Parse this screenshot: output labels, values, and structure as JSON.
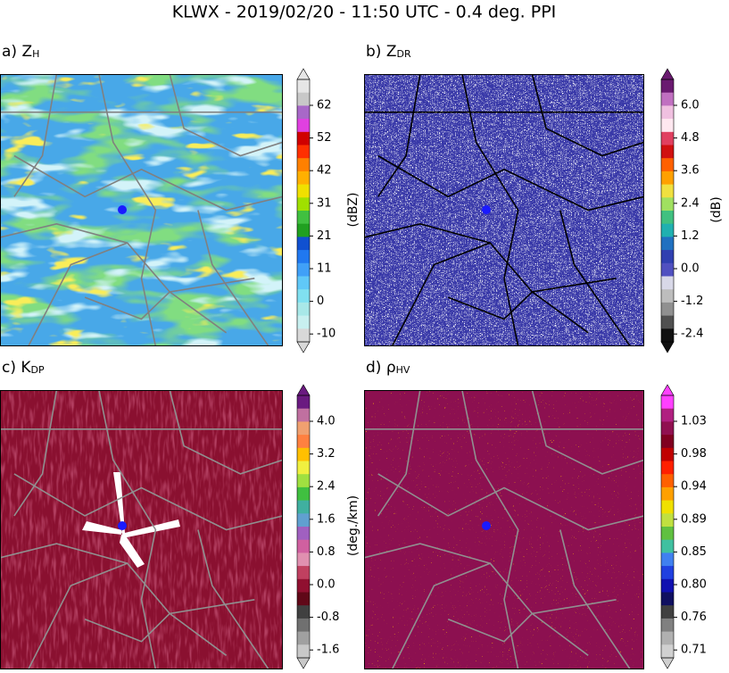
{
  "title": "KLWX - 2019/02/20 - 11:50 UTC - 0.4 deg. PPI",
  "panels": [
    {
      "label": "a) Z",
      "sub": "H",
      "unit": "(dBZ)",
      "ticks": [
        "62",
        "52",
        "42",
        "31",
        "21",
        "11",
        "0",
        "-10"
      ],
      "colors": [
        "#e6e6e6",
        "#c8c8c8",
        "#a868c8",
        "#e040e0",
        "#d00000",
        "#ff3000",
        "#ff8000",
        "#ffb000",
        "#f0e000",
        "#a0e000",
        "#40c040",
        "#20a020",
        "#1050d0",
        "#2078f0",
        "#40a0f8",
        "#60c8f8",
        "#80e0f0",
        "#a8e8e8",
        "#c8f0f0",
        "#d8d8d8"
      ]
    },
    {
      "label": "b) Z",
      "sub": "DR",
      "unit": "(dB)",
      "ticks": [
        "6.0",
        "4.8",
        "3.6",
        "2.4",
        "1.2",
        "0.0",
        "-1.2",
        "-2.4"
      ],
      "colors": [
        "#6a1a70",
        "#c070c0",
        "#f0c0e0",
        "#ffe8f0",
        "#e04060",
        "#d01010",
        "#ff6000",
        "#ffa000",
        "#f0e040",
        "#a0e060",
        "#40c080",
        "#20b0b0",
        "#2070c0",
        "#3040b0",
        "#5050c0",
        "#d8d8e8",
        "#bdbdbd",
        "#909090",
        "#505050",
        "#101010"
      ]
    },
    {
      "label": "c) K",
      "sub": "DP",
      "unit": "(deg./km)",
      "ticks": [
        "4.0",
        "3.2",
        "2.4",
        "1.6",
        "0.8",
        "0.0",
        "-0.8",
        "-1.6"
      ],
      "colors": [
        "#6a1a80",
        "#c070a0",
        "#f0a070",
        "#ff8040",
        "#ffc000",
        "#f0f040",
        "#a0e040",
        "#40c040",
        "#40b0a0",
        "#60a0d0",
        "#a060c0",
        "#d060a0",
        "#e090b0",
        "#c04060",
        "#901030",
        "#600818",
        "#404040",
        "#707070",
        "#a0a0a0",
        "#c8c8c8"
      ]
    },
    {
      "label": "d) ρ",
      "sub": "HV",
      "ticks": [
        "1.03",
        "0.98",
        "0.94",
        "0.89",
        "0.85",
        "0.80",
        "0.76",
        "0.71"
      ],
      "colors": [
        "#ff40ff",
        "#b02080",
        "#901050",
        "#800020",
        "#c00000",
        "#ff2000",
        "#ff6000",
        "#ffa000",
        "#f0e000",
        "#c0e040",
        "#60c040",
        "#40c0a0",
        "#4080f0",
        "#2040e0",
        "#1010b0",
        "#101060",
        "#404040",
        "#808080",
        "#b0b0b0",
        "#d0d0d0"
      ]
    }
  ]
}
